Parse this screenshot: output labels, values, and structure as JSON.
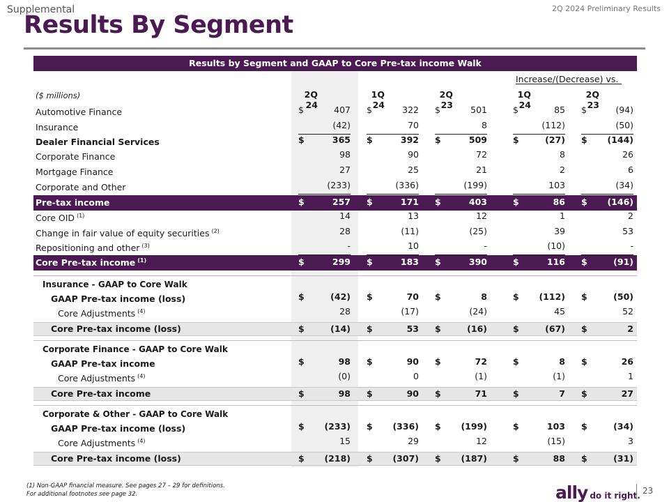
{
  "header": {
    "section": "Supplemental",
    "period": "2Q 2024 Preliminary Results",
    "title": "Results By Segment"
  },
  "table": {
    "band_title": "Results by Segment and GAAP to Core Pre-tax income Walk",
    "increase_label": "Increase/(Decrease) vs.",
    "units": "($ millions)",
    "columns": [
      "2Q 24",
      "1Q 24",
      "2Q 23",
      "1Q 24",
      "2Q 23"
    ],
    "rows": [
      {
        "label": "Automotive Finance",
        "dollar": [
          "$",
          "$",
          "$",
          "$",
          "$"
        ],
        "values": [
          "407",
          "322",
          "501",
          "85",
          "(94)"
        ]
      },
      {
        "label": "Insurance",
        "values": [
          "(42)",
          "70",
          "8",
          "(112)",
          "(50)"
        ]
      },
      {
        "label": "Dealer Financial Services",
        "dollar": [
          "$",
          "$",
          "$",
          "$",
          "$"
        ],
        "values": [
          "365",
          "392",
          "509",
          "(27)",
          "(144)"
        ]
      },
      {
        "label": "Corporate Finance",
        "values": [
          "98",
          "90",
          "72",
          "8",
          "26"
        ]
      },
      {
        "label": "Mortgage Finance",
        "values": [
          "27",
          "25",
          "21",
          "2",
          "6"
        ]
      },
      {
        "label": "Corporate and Other",
        "values": [
          "(233)",
          "(336)",
          "(199)",
          "103",
          "(34)"
        ]
      },
      {
        "label": "Pre-tax income",
        "dollar": [
          "$",
          "$",
          "$",
          "$",
          "$"
        ],
        "values": [
          "257",
          "171",
          "403",
          "86",
          "(146)"
        ]
      },
      {
        "label": "Core OID",
        "note": "(1)",
        "values": [
          "14",
          "13",
          "12",
          "1",
          "2"
        ]
      },
      {
        "label": "Change in fair value of equity securities",
        "note": "(2)",
        "values": [
          "28",
          "(11)",
          "(25)",
          "39",
          "53"
        ]
      },
      {
        "label": "Repositioning and other",
        "note": "(3)",
        "values": [
          "-",
          "10",
          "-",
          "(10)",
          "-"
        ]
      },
      {
        "label": "Core Pre-tax income",
        "note": "(1)",
        "dollar": [
          "$",
          "$",
          "$",
          "$",
          "$"
        ],
        "values": [
          "299",
          "183",
          "390",
          "116",
          "(91)"
        ]
      }
    ],
    "walks": [
      {
        "title": "Insurance - GAAP to Core Walk",
        "gaap": {
          "label": "GAAP Pre-tax income (loss)",
          "dollar": [
            "$",
            "$",
            "$",
            "$",
            "$"
          ],
          "values": [
            "(42)",
            "70",
            "8",
            "(112)",
            "(50)"
          ]
        },
        "adj": {
          "label": "Core Adjustments",
          "note": "(4)",
          "values": [
            "28",
            "(17)",
            "(24)",
            "45",
            "52"
          ]
        },
        "core": {
          "label": "Core Pre-tax income (loss)",
          "dollar": [
            "$",
            "$",
            "$",
            "$",
            "$"
          ],
          "values": [
            "(14)",
            "53",
            "(16)",
            "(67)",
            "2"
          ]
        }
      },
      {
        "title": "Corporate Finance - GAAP to Core Walk",
        "gaap": {
          "label": "GAAP Pre-tax income",
          "dollar": [
            "$",
            "$",
            "$",
            "$",
            "$"
          ],
          "values": [
            "98",
            "90",
            "72",
            "8",
            "26"
          ]
        },
        "adj": {
          "label": "Core Adjustments",
          "note": "(4)",
          "values": [
            "(0)",
            "0",
            "(1)",
            "(1)",
            "1"
          ]
        },
        "core": {
          "label": "Core Pre-tax income",
          "dollar": [
            "$",
            "$",
            "$",
            "$",
            "$"
          ],
          "values": [
            "98",
            "90",
            "71",
            "7",
            "27"
          ]
        }
      },
      {
        "title": "Corporate & Other - GAAP to Core Walk",
        "gaap": {
          "label": "GAAP Pre-tax income (loss)",
          "dollar": [
            "$",
            "$",
            "$",
            "$",
            "$"
          ],
          "values": [
            "(233)",
            "(336)",
            "(199)",
            "103",
            "(34)"
          ]
        },
        "adj": {
          "label": "Core Adjustments",
          "note": "(4)",
          "values": [
            "15",
            "29",
            "12",
            "(15)",
            "3"
          ]
        },
        "core": {
          "label": "Core Pre-tax income (loss)",
          "dollar": [
            "$",
            "$",
            "$",
            "$",
            "$"
          ],
          "values": [
            "(218)",
            "(307)",
            "(187)",
            "88",
            "(31)"
          ]
        }
      }
    ]
  },
  "footer": {
    "note1": "(1)     Non-GAAP financial measure. See pages 27 – 29 for definitions.",
    "note2": "For additional footnotes see page 32.",
    "brand": "ally",
    "tagline": "do it right.",
    "page": "23"
  }
}
